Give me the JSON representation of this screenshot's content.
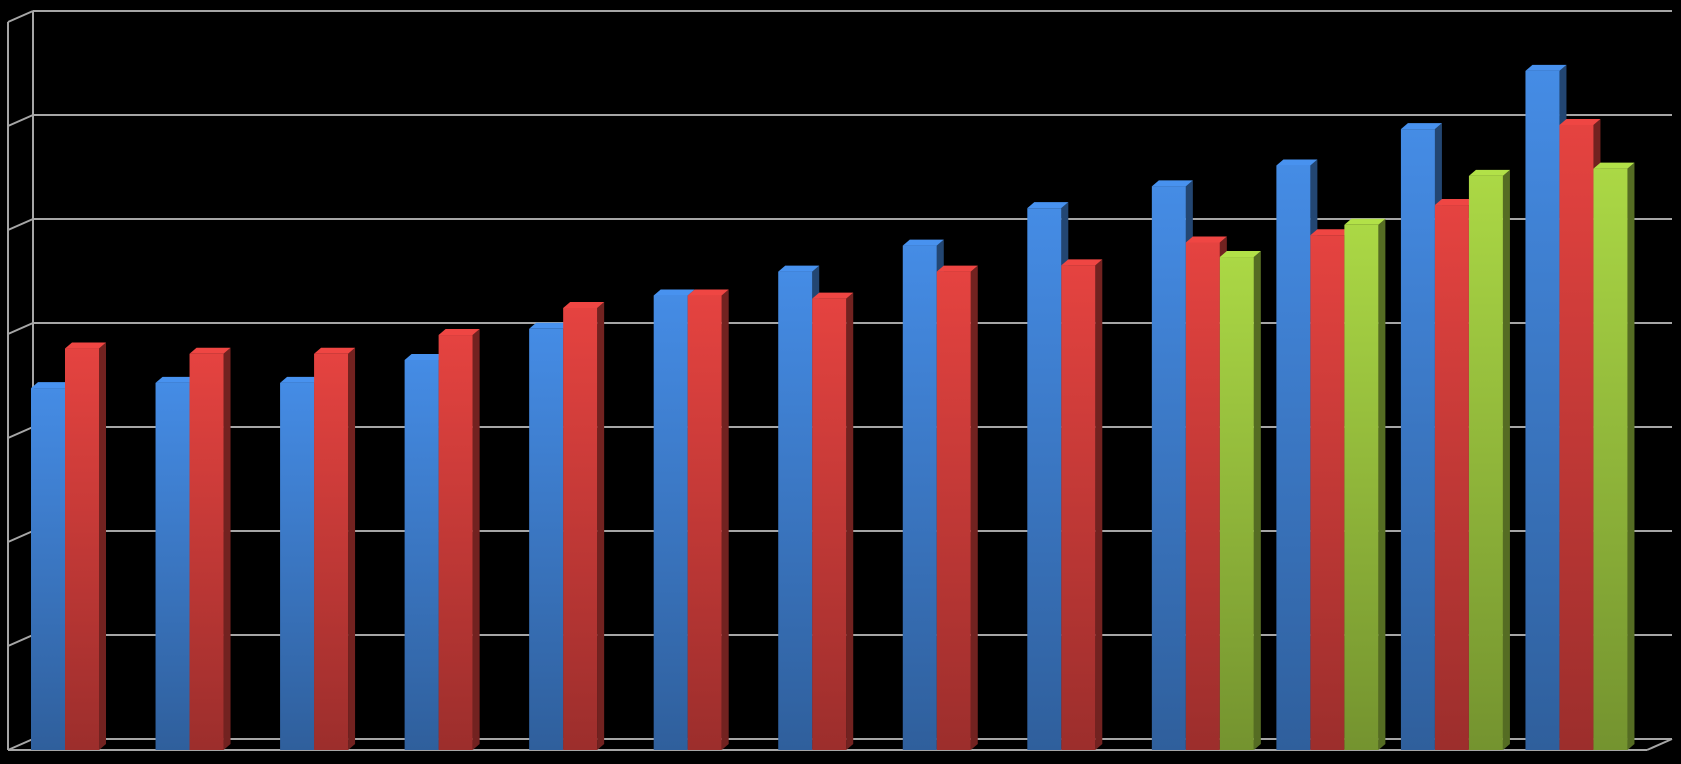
{
  "chart_data": {
    "type": "bar3d",
    "categories": [
      null,
      null,
      null,
      null,
      null,
      null,
      null,
      null,
      null,
      null,
      null,
      null,
      null
    ],
    "series": [
      {
        "color": "#3f7fd0",
        "values": [
          3.48,
          3.53,
          3.53,
          3.75,
          4.05,
          4.37,
          4.6,
          4.85,
          5.21,
          5.42,
          5.62,
          5.97,
          6.53
        ]
      },
      {
        "color": "#d03d3a",
        "values": [
          3.86,
          3.81,
          3.81,
          3.99,
          4.25,
          4.37,
          4.34,
          4.6,
          4.66,
          4.88,
          4.95,
          5.24,
          6.01
        ]
      },
      {
        "color": "#9bc43f",
        "values": [
          null,
          null,
          null,
          null,
          null,
          null,
          null,
          null,
          null,
          4.74,
          5.05,
          5.52,
          5.59
        ]
      }
    ],
    "ylim": [
      0,
      7
    ],
    "yticks": [
      0,
      1,
      2,
      3,
      4,
      5,
      6,
      7
    ],
    "grid": true
  }
}
